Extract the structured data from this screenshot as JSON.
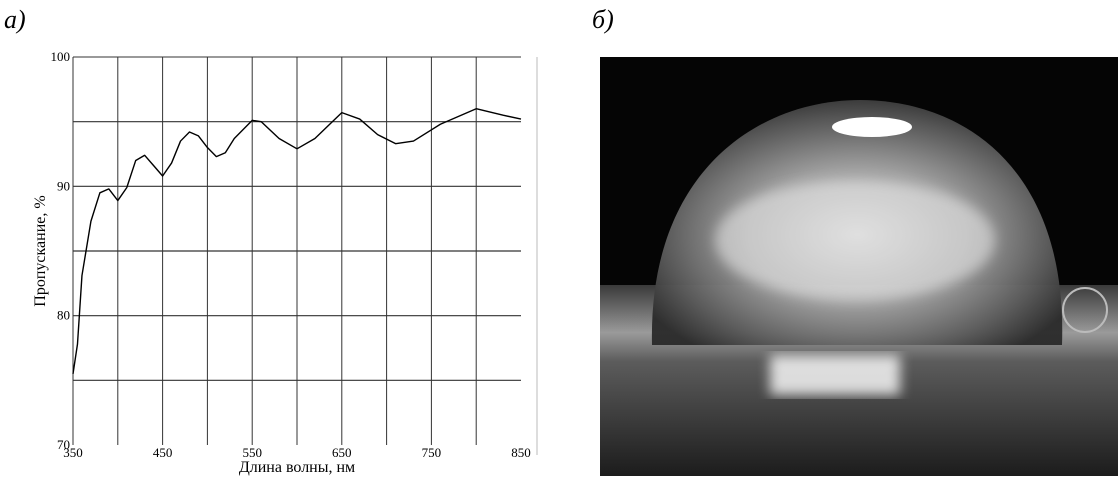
{
  "panel_a": "а)",
  "panel_b": "б)",
  "chart_data": {
    "type": "line",
    "xlabel": "Длина волны, нм",
    "ylabel": "Пропускание, %",
    "x": [
      350,
      355,
      360,
      370,
      380,
      390,
      400,
      410,
      420,
      430,
      440,
      450,
      460,
      470,
      480,
      490,
      500,
      510,
      520,
      530,
      550,
      560,
      580,
      600,
      620,
      650,
      670,
      690,
      710,
      730,
      760,
      800,
      830,
      850
    ],
    "series": [
      {
        "color": "#000000",
        "values": [
          75.5,
          77.8,
          83.1,
          87.3,
          89.5,
          89.8,
          88.9,
          89.9,
          92.0,
          92.4,
          91.6,
          90.8,
          91.8,
          93.5,
          94.2,
          93.9,
          93.0,
          92.3,
          92.6,
          93.7,
          95.1,
          95.0,
          93.7,
          92.9,
          93.7,
          95.7,
          95.2,
          94.0,
          93.3,
          93.5,
          94.8,
          96.0,
          95.5,
          95.2
        ]
      }
    ],
    "xlim": [
      350,
      850
    ],
    "ylim": [
      70,
      100
    ],
    "xticks": [
      350,
      450,
      550,
      650,
      750,
      850
    ],
    "yticks": [
      70,
      80,
      90,
      100
    ],
    "xgrid": [
      400,
      450,
      500,
      550,
      600,
      650,
      700,
      750,
      800
    ],
    "ygrid": [
      75,
      80,
      85,
      90,
      95
    ],
    "grid": true
  }
}
